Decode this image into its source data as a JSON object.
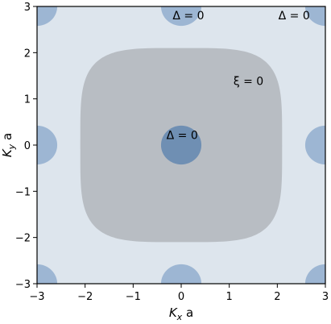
{
  "chart_data": {
    "type": "contour",
    "xlabel": "K_x a",
    "ylabel": "K_y a",
    "xlim": [
      -3,
      3
    ],
    "ylim": [
      -3,
      3
    ],
    "xticks": [
      -3,
      -2,
      -1,
      0,
      1,
      2,
      3
    ],
    "yticks": [
      -3,
      -2,
      -1,
      0,
      1,
      2,
      3
    ],
    "xtick_labels": [
      "−3",
      "−2",
      "−1",
      "0",
      "1",
      "2",
      "3"
    ],
    "ytick_labels": [
      "−3",
      "−2",
      "−1",
      "0",
      "1",
      "2",
      "3"
    ],
    "grid": false,
    "regions": [
      {
        "id": "fermi-surface-region",
        "center": [
          0,
          0
        ],
        "halfwidth_x": 2.1,
        "halfwidth_y": 2.1,
        "shape": "rounded-square",
        "color": "#b8bdc3",
        "label": "ξ = 0",
        "label_at": [
          1.4,
          1.3
        ]
      },
      {
        "id": "gap-node-center",
        "center": [
          0,
          0
        ],
        "radius": 0.42,
        "color": "#6f8fb3",
        "label": "Δ = 0",
        "label_at": [
          0.02,
          0.13
        ]
      },
      {
        "id": "gap-node-left",
        "center": [
          -3,
          0
        ],
        "radius": 0.42,
        "color": "#9db6d3"
      },
      {
        "id": "gap-node-right",
        "center": [
          3,
          0
        ],
        "radius": 0.42,
        "color": "#9db6d3"
      },
      {
        "id": "gap-node-top",
        "center": [
          0,
          3
        ],
        "radius": 0.42,
        "color": "#9db6d3",
        "label": "Δ = 0",
        "label_at": [
          0.15,
          2.72
        ]
      },
      {
        "id": "gap-node-bottom",
        "center": [
          0,
          -3
        ],
        "radius": 0.42,
        "color": "#9db6d3"
      },
      {
        "id": "gap-node-top-left",
        "center": [
          -3,
          3
        ],
        "radius": 0.42,
        "color": "#9db6d3"
      },
      {
        "id": "gap-node-top-right",
        "center": [
          3,
          3
        ],
        "radius": 0.42,
        "color": "#9db6d3",
        "label": "Δ = 0",
        "label_at": [
          2.35,
          2.72
        ]
      },
      {
        "id": "gap-node-bottom-left",
        "center": [
          -3,
          -3
        ],
        "radius": 0.42,
        "color": "#9db6d3"
      },
      {
        "id": "gap-node-bottom-right",
        "center": [
          3,
          -3
        ],
        "radius": 0.42,
        "color": "#9db6d3"
      }
    ],
    "background_color": "#dde5ed"
  }
}
